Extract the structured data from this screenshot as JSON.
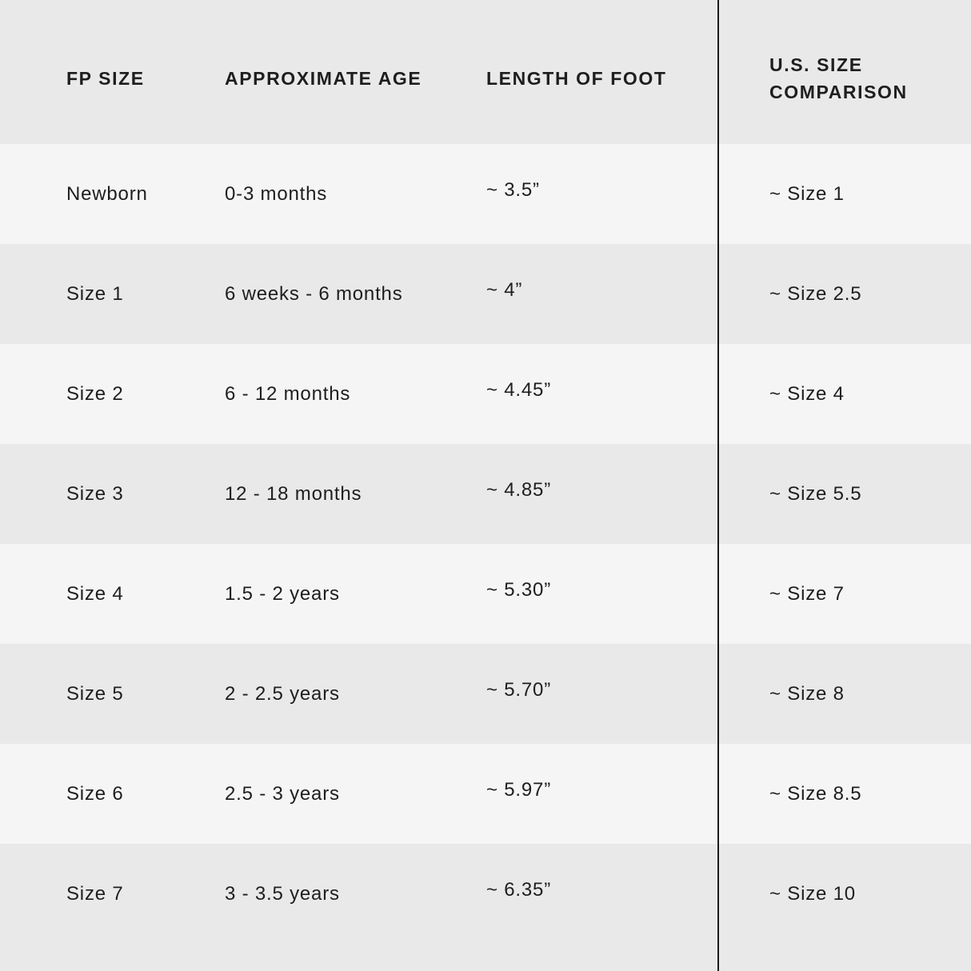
{
  "colors": {
    "row_light": "#f5f5f6",
    "row_dark": "#e9e9ea",
    "divider": "#1b1b1b",
    "text": "#1e1e1e"
  },
  "chart_data": {
    "type": "table",
    "title": "",
    "columns": [
      "FP SIZE",
      "APPROXIMATE AGE",
      "LENGTH OF FOOT",
      "U.S. SIZE COMPARISON"
    ],
    "rows": [
      [
        "Newborn",
        "0-3 months",
        "~ 3.5”",
        "~ Size 1"
      ],
      [
        "Size 1",
        "6 weeks - 6 months",
        "~ 4”",
        "~ Size 2.5"
      ],
      [
        "Size 2",
        "6 - 12 months",
        "~ 4.45”",
        "~ Size 4"
      ],
      [
        "Size 3",
        "12 - 18 months",
        "~ 4.85”",
        "~ Size 5.5"
      ],
      [
        "Size 4",
        "1.5 - 2 years",
        "~ 5.30”",
        "~ Size 7"
      ],
      [
        "Size 5",
        "2 - 2.5 years",
        "~ 5.70”",
        "~ Size 8"
      ],
      [
        "Size 6",
        "2.5 - 3 years",
        "~ 5.97”",
        "~ Size 8.5"
      ],
      [
        "Size 7",
        "3 - 3.5 years",
        "~ 6.35”",
        "~ Size 10"
      ]
    ],
    "layout": {
      "striped_rows": true,
      "divider_before_last_column": true
    }
  }
}
